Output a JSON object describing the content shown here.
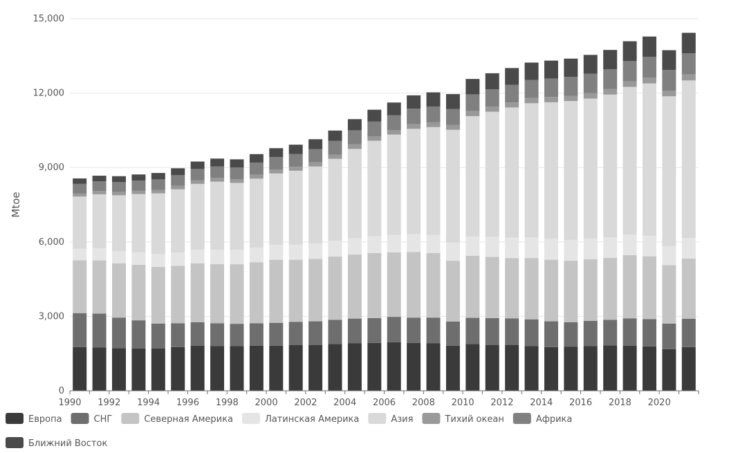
{
  "chart_data": {
    "type": "bar",
    "stacked": true,
    "ylabel": "Mtoe",
    "xlabel": "",
    "ylim": [
      0,
      15000
    ],
    "yticks": [
      0,
      3000,
      6000,
      9000,
      12000,
      15000
    ],
    "ytick_labels": [
      "0",
      "3,000",
      "6,000",
      "9,000",
      "12,000",
      "15,000"
    ],
    "x": [
      1990,
      1991,
      1992,
      1993,
      1994,
      1995,
      1996,
      1997,
      1998,
      1999,
      2000,
      2001,
      2002,
      2003,
      2004,
      2005,
      2006,
      2007,
      2008,
      2009,
      2010,
      2011,
      2012,
      2013,
      2014,
      2015,
      2016,
      2017,
      2018,
      2019,
      2020,
      2021
    ],
    "xtick_labels": [
      "1990",
      "1992",
      "1994",
      "1996",
      "1998",
      "2000",
      "2002",
      "2004",
      "2006",
      "2008",
      "2010",
      "2012",
      "2014",
      "2016",
      "2018",
      "2020"
    ],
    "grid": "horizontal",
    "legend_position": "bottom",
    "series": [
      {
        "name": "Европа",
        "color": "#3a3a3a",
        "values": [
          1760,
          1750,
          1720,
          1700,
          1710,
          1760,
          1820,
          1800,
          1800,
          1820,
          1820,
          1850,
          1850,
          1880,
          1920,
          1930,
          1960,
          1930,
          1920,
          1820,
          1880,
          1850,
          1840,
          1800,
          1760,
          1780,
          1800,
          1830,
          1820,
          1790,
          1680,
          1760
        ]
      },
      {
        "name": "СНГ",
        "color": "#6e6e6e",
        "values": [
          1370,
          1360,
          1230,
          1140,
          1000,
          960,
          940,
          920,
          900,
          900,
          920,
          930,
          950,
          980,
          990,
          1000,
          1020,
          1020,
          1030,
          970,
          1060,
          1080,
          1080,
          1080,
          1040,
          980,
          1020,
          1030,
          1100,
          1100,
          1030,
          1140
        ]
      },
      {
        "name": "Северная Америка",
        "color": "#c4c4c4",
        "values": [
          2130,
          2150,
          2190,
          2240,
          2280,
          2320,
          2380,
          2390,
          2400,
          2460,
          2540,
          2500,
          2520,
          2550,
          2580,
          2620,
          2600,
          2640,
          2600,
          2450,
          2500,
          2470,
          2430,
          2470,
          2480,
          2480,
          2480,
          2500,
          2550,
          2530,
          2350,
          2430
        ]
      },
      {
        "name": "Латинская Америка",
        "color": "#e5e5e5",
        "values": [
          470,
          480,
          490,
          500,
          520,
          530,
          550,
          570,
          580,
          590,
          600,
          610,
          620,
          640,
          660,
          680,
          700,
          720,
          730,
          730,
          780,
          800,
          820,
          840,
          850,
          840,
          830,
          830,
          830,
          820,
          760,
          830
        ]
      },
      {
        "name": "Азия",
        "color": "#d9d9d9",
        "values": [
          2100,
          2180,
          2250,
          2350,
          2450,
          2550,
          2650,
          2750,
          2700,
          2780,
          2880,
          2980,
          3100,
          3300,
          3600,
          3850,
          4050,
          4250,
          4350,
          4550,
          4850,
          5050,
          5250,
          5400,
          5500,
          5600,
          5650,
          5750,
          5950,
          6150,
          6050,
          6350
        ]
      },
      {
        "name": "Тихий океан",
        "color": "#999999",
        "values": [
          130,
          130,
          130,
          130,
          140,
          140,
          150,
          150,
          150,
          160,
          160,
          160,
          170,
          170,
          180,
          180,
          180,
          190,
          190,
          190,
          200,
          200,
          200,
          210,
          210,
          210,
          220,
          220,
          220,
          230,
          230,
          240
        ]
      },
      {
        "name": "Африка",
        "color": "#808080",
        "values": [
          380,
          390,
          400,
          410,
          420,
          430,
          450,
          460,
          470,
          490,
          500,
          510,
          530,
          550,
          570,
          590,
          600,
          620,
          640,
          650,
          680,
          700,
          710,
          730,
          750,
          760,
          780,
          800,
          820,
          840,
          830,
          850
        ]
      },
      {
        "name": "Ближний Восток",
        "color": "#4a4a4a",
        "values": [
          220,
          230,
          240,
          250,
          260,
          280,
          300,
          320,
          330,
          340,
          360,
          380,
          400,
          420,
          450,
          480,
          510,
          540,
          570,
          600,
          620,
          650,
          680,
          700,
          720,
          740,
          760,
          780,
          800,
          820,
          800,
          830
        ]
      }
    ]
  }
}
